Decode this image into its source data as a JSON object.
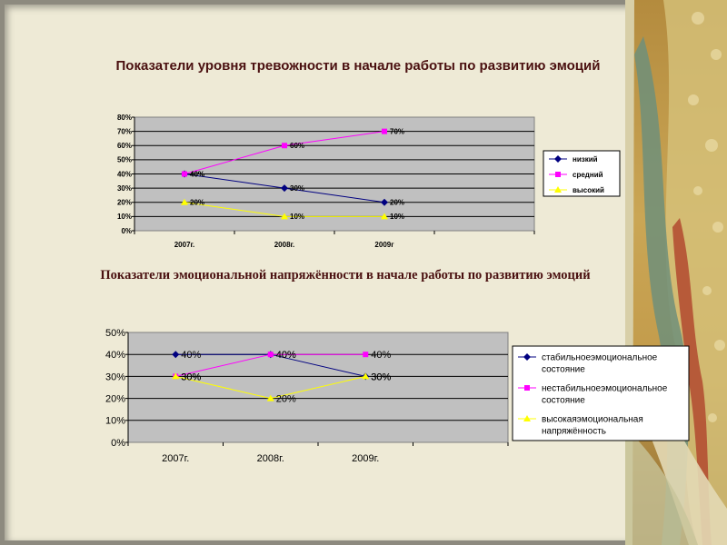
{
  "chart_data": [
    {
      "type": "line",
      "title": "Показатели уровня тревожности в начале работы по развитию эмоций",
      "categories": [
        "2007г.",
        "2008г.",
        "2009г"
      ],
      "ylim": [
        0,
        80
      ],
      "yticks": [
        "0%",
        "10%",
        "20%",
        "30%",
        "40%",
        "50%",
        "60%",
        "70%",
        "80%"
      ],
      "grid": true,
      "legend_position": "right",
      "series": [
        {
          "name": "низкий",
          "values": [
            40,
            30,
            20
          ],
          "labels": [
            "40%",
            "30%",
            "20%"
          ],
          "color": "#000080",
          "marker": "diamond"
        },
        {
          "name": "средний",
          "values": [
            40,
            60,
            70
          ],
          "labels": [
            "40%",
            "60%",
            "70%"
          ],
          "color": "#ff00ff",
          "marker": "square"
        },
        {
          "name": "высокий",
          "values": [
            20,
            10,
            10
          ],
          "labels": [
            "20%",
            "10%",
            "10%"
          ],
          "color": "#ffff00",
          "marker": "triangle"
        }
      ]
    },
    {
      "type": "line",
      "title": "Показатели эмоциональной напряжённости в начале работы по развитию эмоций",
      "categories": [
        "2007г.",
        "2008г.",
        "2009г."
      ],
      "ylim": [
        0,
        50
      ],
      "yticks": [
        "0%",
        "10%",
        "20%",
        "30%",
        "40%",
        "50%"
      ],
      "grid": true,
      "legend_position": "right",
      "series": [
        {
          "name": "стабильноеэмоциональное состояние",
          "name_lines": [
            "стабильноеэмоциональное",
            "состояние"
          ],
          "values": [
            40,
            40,
            30
          ],
          "labels": [
            "40%",
            "40%",
            "30%"
          ],
          "color": "#000080",
          "marker": "diamond"
        },
        {
          "name": "нестабильноеэмоциональное состояние",
          "name_lines": [
            "нестабильноеэмоциональное",
            "состояние"
          ],
          "values": [
            30,
            40,
            40
          ],
          "labels": [
            "30%",
            "40%",
            "40%"
          ],
          "color": "#ff00ff",
          "marker": "square"
        },
        {
          "name": "высокаяэмоциональная напряжённость",
          "name_lines": [
            "высокаяэмоциональная",
            "напряжённость"
          ],
          "values": [
            30,
            20,
            30
          ],
          "labels": [
            "30%",
            "20%",
            "30%"
          ],
          "color": "#ffff00",
          "marker": "triangle"
        }
      ]
    }
  ]
}
